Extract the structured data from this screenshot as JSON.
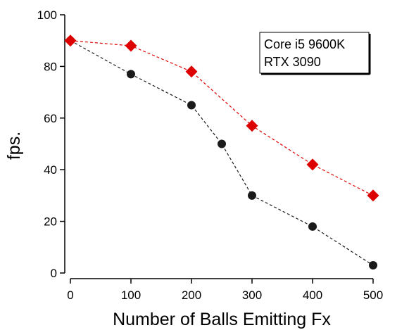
{
  "chart_data": {
    "type": "line",
    "title": "",
    "xlabel": "Number of Balls Emitting Fx",
    "ylabel": "fps.",
    "xlim": [
      0,
      500
    ],
    "ylim": [
      0,
      100
    ],
    "xticks": [
      0,
      100,
      200,
      300,
      400,
      500
    ],
    "yticks": [
      0,
      20,
      40,
      60,
      80,
      100
    ],
    "grid": false,
    "legend_placement": "top-right",
    "annotation": {
      "lines": [
        "Core i5 9600K",
        "RTX 3090"
      ]
    },
    "series": [
      {
        "name": "series-red-diamond",
        "color": "#dd0000",
        "marker": "diamond",
        "linestyle": "dashed",
        "x": [
          0,
          100,
          200,
          300,
          400,
          500
        ],
        "y": [
          90,
          88,
          78,
          57,
          42,
          30
        ]
      },
      {
        "name": "series-black-circle",
        "color": "#1a1a1a",
        "marker": "circle",
        "linestyle": "dashed",
        "x": [
          0,
          100,
          200,
          250,
          300,
          400,
          500
        ],
        "y": [
          90,
          77,
          65,
          50,
          30,
          18,
          3
        ]
      }
    ]
  }
}
